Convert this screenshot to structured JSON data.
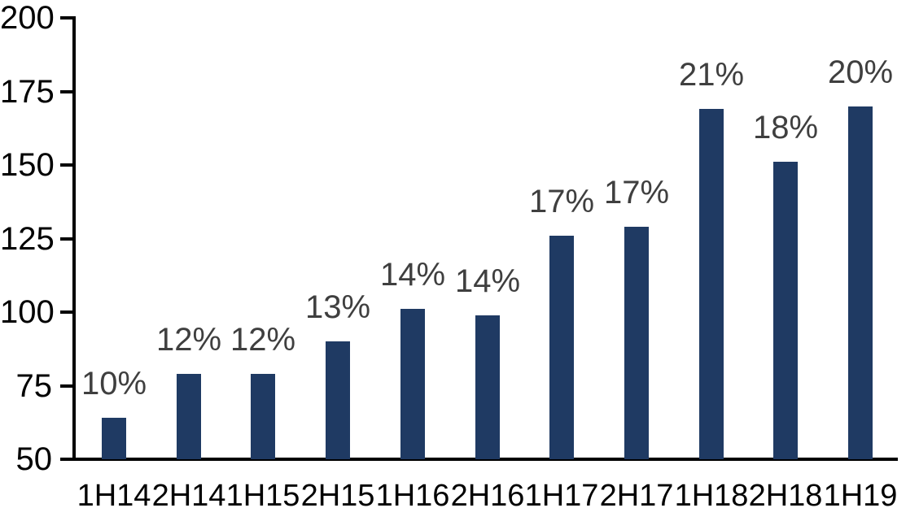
{
  "chart_data": {
    "type": "bar",
    "title": "",
    "xlabel": "",
    "ylabel": "",
    "categories": [
      "1H14",
      "2H14",
      "1H15",
      "2H15",
      "1H16",
      "2H16",
      "1H17",
      "2H17",
      "1H18",
      "2H18",
      "1H19"
    ],
    "values": [
      64,
      79,
      79,
      90,
      101,
      99,
      126,
      129,
      169,
      151,
      170
    ],
    "bar_labels": [
      "10%",
      "12%",
      "12%",
      "13%",
      "14%",
      "14%",
      "17%",
      "17%",
      "21%",
      "18%",
      "20%"
    ],
    "ylim": [
      50,
      200
    ],
    "y_ticks": [
      50,
      75,
      100,
      125,
      150,
      175,
      200
    ],
    "grid": false,
    "legend": false,
    "colors": {
      "bar": "#1F3A63",
      "bar_label_text": "#3F3F3F",
      "axis": "#000000",
      "tick_label_text": "#000000",
      "background": "#FFFFFF"
    }
  }
}
